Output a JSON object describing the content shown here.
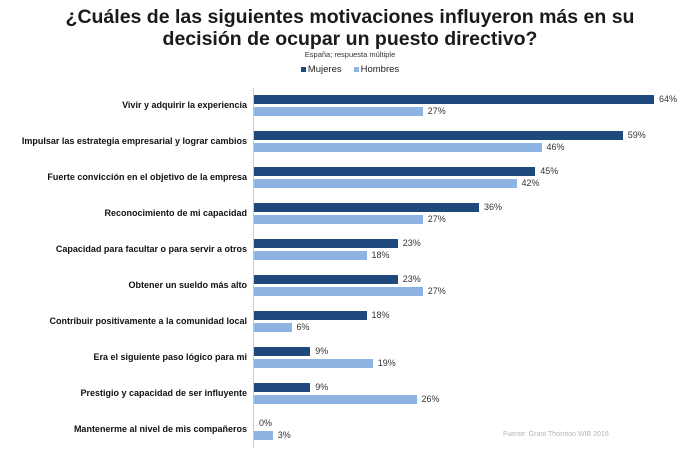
{
  "chart_data": {
    "type": "bar",
    "orientation": "horizontal",
    "title": "¿Cuáles de las siguientes motivaciones influyeron más en su decisión de ocupar un puesto directivo?",
    "title_lines": [
      "¿Cuáles de las siguientes motivaciones influyeron más en su",
      "decisión de ocupar un puesto directivo?"
    ],
    "subtitle": "España; respuesta múltiple",
    "legend_position": "top-center",
    "xlabel": "",
    "ylabel": "",
    "xlim": [
      0,
      100
    ],
    "grid": false,
    "value_suffix": "%",
    "categories": [
      "Vivir y adquirir la experiencia",
      "Impulsar las estrategia empresarial y lograr cambios",
      "Fuerte convicción en el objetivo de la empresa",
      "Reconocimiento de mi capacidad",
      "Capacidad para facultar o para servir a otros",
      "Obtener un sueldo más alto",
      "Contribuir positivamente a la comunidad local",
      "Era el siguiente paso lógico para mi",
      "Prestigio y capacidad de ser influyente",
      "Mantenerme al nivel de mis compañeros"
    ],
    "series": [
      {
        "name": "Mujeres",
        "color": "#1f497d",
        "values": [
          64,
          59,
          45,
          36,
          23,
          23,
          18,
          9,
          9,
          0
        ]
      },
      {
        "name": "Hombres",
        "color": "#8db3e2",
        "values": [
          27,
          46,
          42,
          27,
          18,
          27,
          6,
          19,
          26,
          3
        ]
      }
    ],
    "source": "Fuente: Grant Thornton WIB 2016"
  }
}
